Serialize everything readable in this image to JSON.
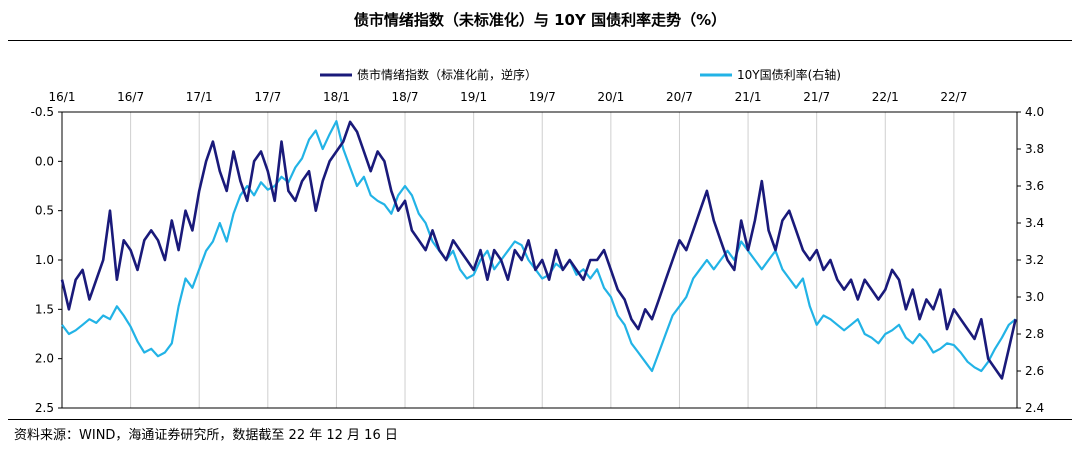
{
  "title": "债市情绪指数（未标准化）与 10Y 国债利率走势（%）",
  "source": "资料来源：WIND，海通证券研究所，数据截至 22 年 12 月 16 日",
  "chart_data": {
    "type": "line",
    "x_tick_labels": [
      "16/1",
      "16/7",
      "17/1",
      "17/7",
      "18/1",
      "18/7",
      "19/1",
      "19/7",
      "20/1",
      "20/7",
      "21/1",
      "21/7",
      "22/1",
      "22/7"
    ],
    "x_range": [
      "2016-01",
      "2022-12"
    ],
    "left_axis": {
      "reversed": true,
      "ylim": [
        -0.5,
        2.5
      ],
      "ticks": [
        "-0.5",
        "0.0",
        "0.5",
        "1.0",
        "1.5",
        "2.0",
        "2.5"
      ]
    },
    "right_axis": {
      "ylim": [
        2.4,
        4.0
      ],
      "ticks": [
        "4.0",
        "3.8",
        "3.6",
        "3.4",
        "3.2",
        "3.0",
        "2.8",
        "2.6",
        "2.4"
      ]
    },
    "grid": "vertical",
    "legend_position": "top-right",
    "colors": {
      "sentiment": "#1a1a7a",
      "yield": "#22b3e6"
    },
    "series": [
      {
        "name": "债市情绪指数（标准化前，逆序）",
        "axis": "left",
        "x": [
          2016.0,
          2016.05,
          2016.1,
          2016.15,
          2016.2,
          2016.25,
          2016.3,
          2016.35,
          2016.4,
          2016.45,
          2016.5,
          2016.55,
          2016.6,
          2016.65,
          2016.7,
          2016.75,
          2016.8,
          2016.85,
          2016.9,
          2016.95,
          2017.0,
          2017.05,
          2017.1,
          2017.15,
          2017.2,
          2017.25,
          2017.3,
          2017.35,
          2017.4,
          2017.45,
          2017.5,
          2017.55,
          2017.6,
          2017.65,
          2017.7,
          2017.75,
          2017.8,
          2017.85,
          2017.9,
          2017.95,
          2018.0,
          2018.05,
          2018.1,
          2018.15,
          2018.2,
          2018.25,
          2018.3,
          2018.35,
          2018.4,
          2018.45,
          2018.5,
          2018.55,
          2018.6,
          2018.65,
          2018.7,
          2018.75,
          2018.8,
          2018.85,
          2018.9,
          2018.95,
          2019.0,
          2019.05,
          2019.1,
          2019.15,
          2019.2,
          2019.25,
          2019.3,
          2019.35,
          2019.4,
          2019.45,
          2019.5,
          2019.55,
          2019.6,
          2019.65,
          2019.7,
          2019.75,
          2019.8,
          2019.85,
          2019.9,
          2019.95,
          2020.0,
          2020.05,
          2020.1,
          2020.15,
          2020.2,
          2020.25,
          2020.3,
          2020.35,
          2020.4,
          2020.45,
          2020.5,
          2020.55,
          2020.6,
          2020.65,
          2020.7,
          2020.75,
          2020.8,
          2020.85,
          2020.9,
          2020.95,
          2021.0,
          2021.05,
          2021.1,
          2021.15,
          2021.2,
          2021.25,
          2021.3,
          2021.35,
          2021.4,
          2021.45,
          2021.5,
          2021.55,
          2021.6,
          2021.65,
          2021.7,
          2021.75,
          2021.8,
          2021.85,
          2021.9,
          2021.95,
          2022.0,
          2022.05,
          2022.1,
          2022.15,
          2022.2,
          2022.25,
          2022.3,
          2022.35,
          2022.4,
          2022.45,
          2022.5,
          2022.55,
          2022.6,
          2022.65,
          2022.7,
          2022.75,
          2022.8,
          2022.85,
          2022.9,
          2022.95
        ],
        "values": [
          1.2,
          1.5,
          1.2,
          1.1,
          1.4,
          1.2,
          1.0,
          0.5,
          1.2,
          0.8,
          0.9,
          1.1,
          0.8,
          0.7,
          0.8,
          1.0,
          0.6,
          0.9,
          0.5,
          0.7,
          0.3,
          0.0,
          -0.2,
          0.1,
          0.3,
          -0.1,
          0.2,
          0.4,
          0.0,
          -0.1,
          0.1,
          0.4,
          -0.2,
          0.3,
          0.4,
          0.2,
          0.1,
          0.5,
          0.2,
          0.0,
          -0.1,
          -0.2,
          -0.4,
          -0.3,
          -0.1,
          0.1,
          -0.1,
          0.0,
          0.3,
          0.5,
          0.4,
          0.7,
          0.8,
          0.9,
          0.7,
          0.9,
          1.0,
          0.8,
          0.9,
          1.0,
          1.1,
          0.9,
          1.2,
          0.9,
          1.0,
          1.2,
          0.9,
          1.0,
          0.8,
          1.1,
          1.0,
          1.2,
          0.9,
          1.1,
          1.0,
          1.1,
          1.2,
          1.0,
          1.0,
          0.9,
          1.1,
          1.3,
          1.4,
          1.6,
          1.7,
          1.5,
          1.6,
          1.4,
          1.2,
          1.0,
          0.8,
          0.9,
          0.7,
          0.5,
          0.3,
          0.6,
          0.8,
          1.0,
          1.1,
          0.6,
          0.9,
          0.6,
          0.2,
          0.7,
          0.9,
          0.6,
          0.5,
          0.7,
          0.9,
          1.0,
          0.9,
          1.1,
          1.0,
          1.2,
          1.3,
          1.2,
          1.4,
          1.2,
          1.3,
          1.4,
          1.3,
          1.1,
          1.2,
          1.5,
          1.3,
          1.6,
          1.4,
          1.5,
          1.3,
          1.7,
          1.5,
          1.6,
          1.7,
          1.8,
          1.6,
          2.0,
          2.1,
          2.2,
          1.9,
          1.6
        ]
      },
      {
        "name": "10Y国债利率(右轴)",
        "axis": "right",
        "x": [
          2016.0,
          2016.05,
          2016.1,
          2016.15,
          2016.2,
          2016.25,
          2016.3,
          2016.35,
          2016.4,
          2016.45,
          2016.5,
          2016.55,
          2016.6,
          2016.65,
          2016.7,
          2016.75,
          2016.8,
          2016.85,
          2016.9,
          2016.95,
          2017.0,
          2017.05,
          2017.1,
          2017.15,
          2017.2,
          2017.25,
          2017.3,
          2017.35,
          2017.4,
          2017.45,
          2017.5,
          2017.55,
          2017.6,
          2017.65,
          2017.7,
          2017.75,
          2017.8,
          2017.85,
          2017.9,
          2017.95,
          2018.0,
          2018.05,
          2018.1,
          2018.15,
          2018.2,
          2018.25,
          2018.3,
          2018.35,
          2018.4,
          2018.45,
          2018.5,
          2018.55,
          2018.6,
          2018.65,
          2018.7,
          2018.75,
          2018.8,
          2018.85,
          2018.9,
          2018.95,
          2019.0,
          2019.05,
          2019.1,
          2019.15,
          2019.2,
          2019.25,
          2019.3,
          2019.35,
          2019.4,
          2019.45,
          2019.5,
          2019.55,
          2019.6,
          2019.65,
          2019.7,
          2019.75,
          2019.8,
          2019.85,
          2019.9,
          2019.95,
          2020.0,
          2020.05,
          2020.1,
          2020.15,
          2020.2,
          2020.25,
          2020.3,
          2020.35,
          2020.4,
          2020.45,
          2020.5,
          2020.55,
          2020.6,
          2020.65,
          2020.7,
          2020.75,
          2020.8,
          2020.85,
          2020.9,
          2020.95,
          2021.0,
          2021.05,
          2021.1,
          2021.15,
          2021.2,
          2021.25,
          2021.3,
          2021.35,
          2021.4,
          2021.45,
          2021.5,
          2021.55,
          2021.6,
          2021.65,
          2021.7,
          2021.75,
          2021.8,
          2021.85,
          2021.9,
          2021.95,
          2022.0,
          2022.05,
          2022.1,
          2022.15,
          2022.2,
          2022.25,
          2022.3,
          2022.35,
          2022.4,
          2022.45,
          2022.5,
          2022.55,
          2022.6,
          2022.65,
          2022.7,
          2022.75,
          2022.8,
          2022.85,
          2022.9,
          2022.95
        ],
        "values": [
          2.85,
          2.8,
          2.82,
          2.85,
          2.88,
          2.86,
          2.9,
          2.88,
          2.95,
          2.9,
          2.84,
          2.76,
          2.7,
          2.72,
          2.68,
          2.7,
          2.75,
          2.95,
          3.1,
          3.05,
          3.15,
          3.25,
          3.3,
          3.4,
          3.3,
          3.45,
          3.55,
          3.6,
          3.55,
          3.62,
          3.58,
          3.6,
          3.65,
          3.62,
          3.7,
          3.75,
          3.85,
          3.9,
          3.8,
          3.88,
          3.95,
          3.8,
          3.7,
          3.6,
          3.65,
          3.55,
          3.52,
          3.5,
          3.45,
          3.55,
          3.6,
          3.55,
          3.45,
          3.4,
          3.3,
          3.25,
          3.2,
          3.25,
          3.15,
          3.1,
          3.12,
          3.2,
          3.25,
          3.15,
          3.2,
          3.25,
          3.3,
          3.28,
          3.2,
          3.15,
          3.1,
          3.12,
          3.18,
          3.15,
          3.2,
          3.12,
          3.15,
          3.1,
          3.15,
          3.05,
          3.0,
          2.9,
          2.85,
          2.75,
          2.7,
          2.65,
          2.6,
          2.7,
          2.8,
          2.9,
          2.95,
          3.0,
          3.1,
          3.15,
          3.2,
          3.15,
          3.2,
          3.25,
          3.2,
          3.3,
          3.25,
          3.2,
          3.15,
          3.2,
          3.25,
          3.15,
          3.1,
          3.05,
          3.1,
          2.95,
          2.85,
          2.9,
          2.88,
          2.85,
          2.82,
          2.85,
          2.88,
          2.8,
          2.78,
          2.75,
          2.8,
          2.82,
          2.85,
          2.78,
          2.75,
          2.8,
          2.76,
          2.7,
          2.72,
          2.75,
          2.74,
          2.7,
          2.65,
          2.62,
          2.6,
          2.65,
          2.72,
          2.78,
          2.85,
          2.88
        ]
      }
    ]
  }
}
